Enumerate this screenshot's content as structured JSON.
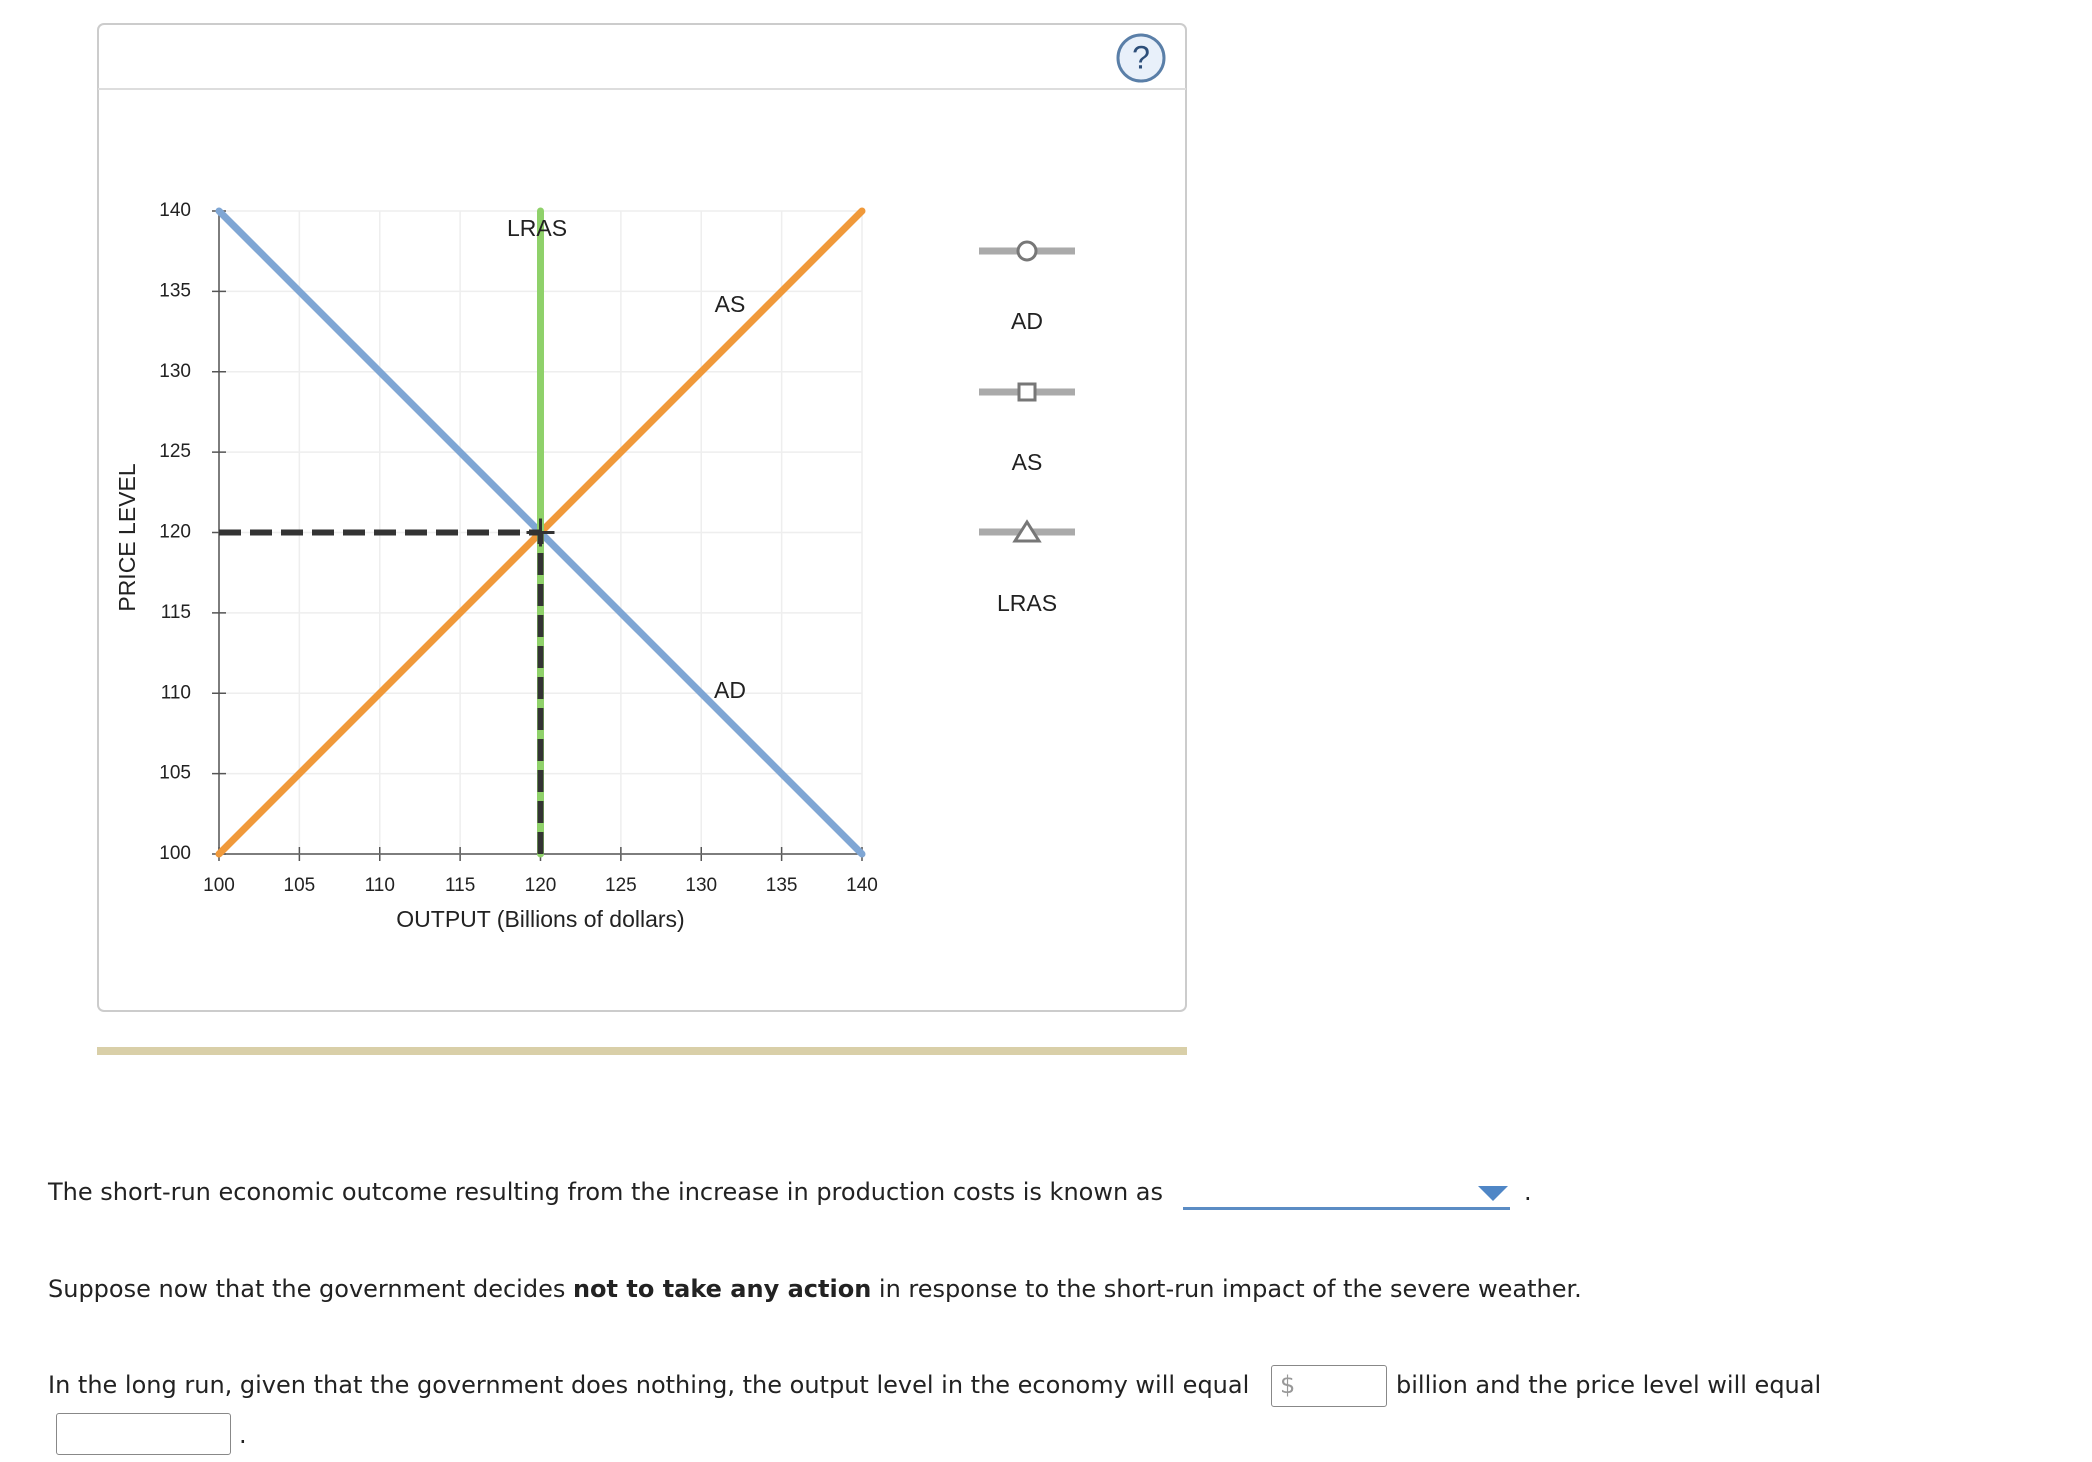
{
  "help": "?",
  "chart_data": {
    "type": "line",
    "xlabel": "OUTPUT (Billions of dollars)",
    "ylabel": "PRICE LEVEL",
    "xlim": [
      100,
      140
    ],
    "ylim": [
      100,
      140
    ],
    "xticks": [
      100,
      105,
      110,
      115,
      120,
      125,
      130,
      135,
      140
    ],
    "yticks": [
      100,
      105,
      110,
      115,
      120,
      125,
      130,
      135,
      140
    ],
    "grid": true,
    "series": [
      {
        "name": "AD",
        "color": "#7fa6d4",
        "x": [
          100,
          140
        ],
        "values": [
          140,
          100
        ]
      },
      {
        "name": "AS",
        "color": "#f0993a",
        "x": [
          100,
          140
        ],
        "values": [
          100,
          140
        ]
      },
      {
        "name": "LRAS",
        "color": "#8fd16a",
        "x": [
          120,
          120
        ],
        "values": [
          100,
          140
        ]
      }
    ],
    "equilibrium": {
      "x": 120,
      "y": 120
    }
  },
  "questions": {
    "q1": "The short-run economic outcome resulting from the increase in production costs is known as",
    "period": ".",
    "q2": [
      "Suppose now that the government decides ",
      "not to take any action",
      " in response to the short-run impact of the severe weather."
    ],
    "q3a": "In the long run, given that the government does nothing, the output level in the economy will equal",
    "dollar": "$",
    "q3b": "billion and the price level will equal"
  }
}
